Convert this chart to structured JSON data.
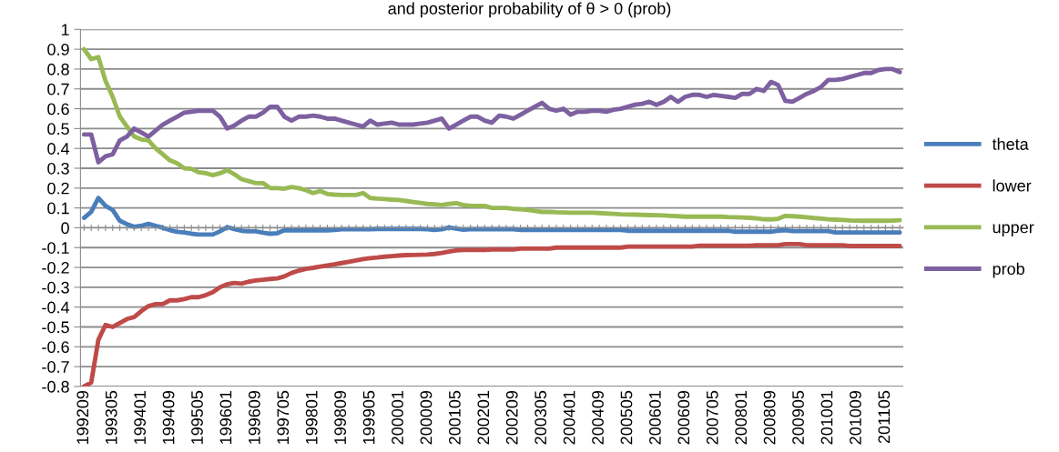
{
  "chart_data": {
    "type": "line",
    "title": "and posterior probability of θ > 0 (prob)",
    "categories": [
      "199209",
      null,
      null,
      null,
      "199305",
      null,
      null,
      null,
      "199401",
      null,
      null,
      null,
      "199409",
      null,
      null,
      null,
      "199505",
      null,
      null,
      null,
      "199601",
      null,
      null,
      null,
      "199609",
      null,
      null,
      null,
      "199705",
      null,
      null,
      null,
      "199801",
      null,
      null,
      null,
      "199809",
      null,
      null,
      null,
      "199905",
      null,
      null,
      null,
      "200001",
      null,
      null,
      null,
      "200009",
      null,
      null,
      null,
      "200105",
      null,
      null,
      null,
      "200201",
      null,
      null,
      null,
      "200209",
      null,
      null,
      null,
      "200305",
      null,
      null,
      null,
      "200401",
      null,
      null,
      null,
      "200409",
      null,
      null,
      null,
      "200505",
      null,
      null,
      null,
      "200601",
      null,
      null,
      null,
      "200609",
      null,
      null,
      null,
      "200705",
      null,
      null,
      null,
      "200801",
      null,
      null,
      null,
      "200809",
      null,
      null,
      null,
      "200905",
      null,
      null,
      null,
      "201001",
      null,
      null,
      null,
      "201009",
      null,
      null,
      null,
      "201105",
      null,
      null
    ],
    "series": [
      {
        "name": "theta",
        "color": "#4a7ebb",
        "values": [
          0.05,
          0.08,
          0.15,
          0.11,
          0.09,
          0.035,
          0.018,
          0.005,
          0.01,
          0.02,
          0.01,
          0,
          -0.012,
          -0.02,
          -0.024,
          -0.03,
          -0.034,
          -0.034,
          -0.034,
          -0.018,
          0.003,
          -0.007,
          -0.015,
          -0.018,
          -0.018,
          -0.025,
          -0.03,
          -0.028,
          -0.012,
          -0.013,
          -0.013,
          -0.013,
          -0.013,
          -0.013,
          -0.013,
          -0.011,
          -0.008,
          -0.008,
          -0.008,
          -0.008,
          -0.008,
          -0.006,
          -0.006,
          -0.006,
          -0.006,
          -0.006,
          -0.006,
          -0.006,
          -0.008,
          -0.011,
          -0.008,
          0.001,
          -0.004,
          -0.01,
          -0.007,
          -0.007,
          -0.007,
          -0.007,
          -0.007,
          -0.007,
          -0.007,
          -0.011,
          -0.011,
          -0.011,
          -0.011,
          -0.011,
          -0.011,
          -0.011,
          -0.011,
          -0.011,
          -0.011,
          -0.011,
          -0.011,
          -0.011,
          -0.011,
          -0.011,
          -0.015,
          -0.015,
          -0.015,
          -0.015,
          -0.015,
          -0.015,
          -0.015,
          -0.015,
          -0.015,
          -0.015,
          -0.015,
          -0.015,
          -0.015,
          -0.015,
          -0.015,
          -0.02,
          -0.02,
          -0.02,
          -0.02,
          -0.02,
          -0.02,
          -0.015,
          -0.012,
          -0.017,
          -0.017,
          -0.017,
          -0.017,
          -0.017,
          -0.017,
          -0.024,
          -0.024,
          -0.024,
          -0.024,
          -0.024,
          -0.024,
          -0.024,
          -0.024,
          -0.024,
          -0.024
        ]
      },
      {
        "name": "lower",
        "color": "#be4b48",
        "values": [
          -0.8,
          -0.78,
          -0.565,
          -0.49,
          -0.5,
          -0.48,
          -0.46,
          -0.45,
          -0.42,
          -0.395,
          -0.385,
          -0.385,
          -0.366,
          -0.366,
          -0.36,
          -0.35,
          -0.35,
          -0.34,
          -0.325,
          -0.3,
          -0.285,
          -0.278,
          -0.282,
          -0.272,
          -0.266,
          -0.262,
          -0.258,
          -0.255,
          -0.245,
          -0.228,
          -0.216,
          -0.207,
          -0.202,
          -0.196,
          -0.19,
          -0.184,
          -0.178,
          -0.172,
          -0.165,
          -0.158,
          -0.153,
          -0.15,
          -0.146,
          -0.143,
          -0.14,
          -0.138,
          -0.137,
          -0.136,
          -0.135,
          -0.132,
          -0.127,
          -0.12,
          -0.114,
          -0.112,
          -0.112,
          -0.112,
          -0.112,
          -0.11,
          -0.11,
          -0.11,
          -0.11,
          -0.105,
          -0.105,
          -0.105,
          -0.105,
          -0.105,
          -0.1,
          -0.1,
          -0.1,
          -0.1,
          -0.1,
          -0.1,
          -0.1,
          -0.1,
          -0.1,
          -0.1,
          -0.095,
          -0.095,
          -0.095,
          -0.095,
          -0.095,
          -0.095,
          -0.095,
          -0.095,
          -0.095,
          -0.095,
          -0.09,
          -0.09,
          -0.09,
          -0.09,
          -0.09,
          -0.09,
          -0.09,
          -0.09,
          -0.088,
          -0.088,
          -0.088,
          -0.088,
          -0.082,
          -0.082,
          -0.082,
          -0.088,
          -0.088,
          -0.088,
          -0.088,
          -0.088,
          -0.088,
          -0.092,
          -0.092,
          -0.092,
          -0.092,
          -0.092,
          -0.092,
          -0.092,
          -0.092
        ]
      },
      {
        "name": "upper",
        "color": "#98b954",
        "values": [
          0.9,
          0.85,
          0.86,
          0.74,
          0.66,
          0.56,
          0.51,
          0.46,
          0.445,
          0.44,
          0.4,
          0.37,
          0.34,
          0.325,
          0.3,
          0.297,
          0.28,
          0.275,
          0.265,
          0.275,
          0.29,
          0.27,
          0.245,
          0.235,
          0.225,
          0.225,
          0.2,
          0.2,
          0.197,
          0.205,
          0.2,
          0.19,
          0.175,
          0.185,
          0.17,
          0.167,
          0.165,
          0.165,
          0.165,
          0.175,
          0.15,
          0.147,
          0.145,
          0.142,
          0.14,
          0.135,
          0.13,
          0.125,
          0.12,
          0.118,
          0.115,
          0.12,
          0.124,
          0.115,
          0.11,
          0.11,
          0.11,
          0.1,
          0.1,
          0.1,
          0.095,
          0.093,
          0.09,
          0.085,
          0.08,
          0.08,
          0.078,
          0.077,
          0.076,
          0.076,
          0.076,
          0.076,
          0.074,
          0.072,
          0.07,
          0.068,
          0.067,
          0.066,
          0.065,
          0.064,
          0.063,
          0.062,
          0.06,
          0.058,
          0.056,
          0.056,
          0.056,
          0.056,
          0.056,
          0.056,
          0.054,
          0.053,
          0.052,
          0.05,
          0.047,
          0.043,
          0.042,
          0.045,
          0.06,
          0.058,
          0.056,
          0.053,
          0.049,
          0.046,
          0.043,
          0.041,
          0.039,
          0.037,
          0.036,
          0.035,
          0.035,
          0.035,
          0.035,
          0.036,
          0.038
        ]
      },
      {
        "name": "prob",
        "color": "#7d60a0",
        "values": [
          0.47,
          0.47,
          0.33,
          0.36,
          0.37,
          0.44,
          0.46,
          0.5,
          0.48,
          0.46,
          0.49,
          0.52,
          0.54,
          0.56,
          0.58,
          0.585,
          0.59,
          0.59,
          0.59,
          0.56,
          0.5,
          0.515,
          0.54,
          0.56,
          0.56,
          0.58,
          0.61,
          0.61,
          0.56,
          0.54,
          0.56,
          0.56,
          0.565,
          0.56,
          0.55,
          0.55,
          0.54,
          0.53,
          0.52,
          0.51,
          0.54,
          0.52,
          0.525,
          0.53,
          0.52,
          0.52,
          0.52,
          0.525,
          0.53,
          0.54,
          0.55,
          0.5,
          0.52,
          0.54,
          0.56,
          0.56,
          0.54,
          0.53,
          0.565,
          0.56,
          0.55,
          0.57,
          0.59,
          0.61,
          0.63,
          0.6,
          0.59,
          0.6,
          0.57,
          0.585,
          0.585,
          0.59,
          0.59,
          0.585,
          0.595,
          0.6,
          0.61,
          0.62,
          0.625,
          0.635,
          0.62,
          0.635,
          0.66,
          0.635,
          0.66,
          0.67,
          0.67,
          0.66,
          0.67,
          0.665,
          0.66,
          0.655,
          0.675,
          0.675,
          0.7,
          0.69,
          0.735,
          0.72,
          0.64,
          0.635,
          0.655,
          0.675,
          0.69,
          0.71,
          0.745,
          0.745,
          0.75,
          0.76,
          0.77,
          0.78,
          0.78,
          0.795,
          0.8,
          0.8,
          0.785
        ]
      }
    ],
    "ylim": [
      -0.8,
      1
    ],
    "yticks": [
      -0.8,
      -0.7,
      -0.6,
      -0.5,
      -0.4,
      -0.3,
      -0.2,
      -0.1,
      0,
      0.1,
      0.2,
      0.3,
      0.4,
      0.5,
      0.6,
      0.7,
      0.8,
      0.9,
      1
    ],
    "grid": "y",
    "legend": "right"
  }
}
